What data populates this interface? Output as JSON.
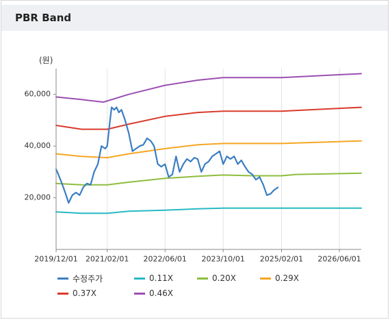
{
  "panel": {
    "title": "PBR Band"
  },
  "chart_data": {
    "type": "line",
    "unit_label": "(원)",
    "x_domain": [
      "2019-12-01",
      "2026-12-01"
    ],
    "ylim": [
      0,
      70000
    ],
    "x_ticks": [
      {
        "date": "2019-12-01",
        "label": "2019/12/01"
      },
      {
        "date": "2021-02-01",
        "label": "2021/02/01"
      },
      {
        "date": "2022-06-01",
        "label": "2022/06/01"
      },
      {
        "date": "2023-10-01",
        "label": "2023/10/01"
      },
      {
        "date": "2025-02-01",
        "label": "2025/02/01"
      },
      {
        "date": "2026-06-01",
        "label": "2026/06/01"
      }
    ],
    "y_ticks": [
      {
        "value": 20000,
        "label": "20,000"
      },
      {
        "value": 40000,
        "label": "40,000"
      },
      {
        "value": 60000,
        "label": "60,000"
      }
    ],
    "grid": "vertical",
    "legend_position": "bottom",
    "series": [
      {
        "name": "수정주가",
        "color": "#3a7ec2",
        "width": 2.2,
        "points": [
          [
            "2019-12-01",
            31000
          ],
          [
            "2019-12-20",
            29000
          ],
          [
            "2020-01-15",
            26000
          ],
          [
            "2020-02-15",
            22000
          ],
          [
            "2020-03-15",
            18000
          ],
          [
            "2020-04-15",
            21000
          ],
          [
            "2020-05-15",
            22000
          ],
          [
            "2020-06-15",
            21000
          ],
          [
            "2020-07-15",
            24000
          ],
          [
            "2020-08-15",
            25500
          ],
          [
            "2020-09-15",
            25000
          ],
          [
            "2020-10-15",
            30000
          ],
          [
            "2020-11-15",
            33000
          ],
          [
            "2020-12-15",
            40000
          ],
          [
            "2021-01-15",
            39000
          ],
          [
            "2021-02-01",
            40000
          ],
          [
            "2021-02-20",
            48000
          ],
          [
            "2021-03-10",
            55000
          ],
          [
            "2021-04-01",
            54000
          ],
          [
            "2021-04-20",
            55000
          ],
          [
            "2021-05-10",
            53000
          ],
          [
            "2021-06-01",
            54000
          ],
          [
            "2021-07-01",
            50000
          ],
          [
            "2021-08-01",
            45000
          ],
          [
            "2021-09-01",
            38000
          ],
          [
            "2021-10-01",
            39000
          ],
          [
            "2021-11-01",
            40000
          ],
          [
            "2021-12-01",
            40500
          ],
          [
            "2022-01-01",
            43000
          ],
          [
            "2022-02-01",
            42000
          ],
          [
            "2022-03-01",
            40000
          ],
          [
            "2022-04-01",
            33000
          ],
          [
            "2022-05-01",
            32000
          ],
          [
            "2022-06-01",
            33000
          ],
          [
            "2022-07-01",
            28000
          ],
          [
            "2022-08-01",
            29000
          ],
          [
            "2022-09-01",
            36000
          ],
          [
            "2022-10-01",
            30000
          ],
          [
            "2022-11-01",
            33000
          ],
          [
            "2022-12-01",
            35000
          ],
          [
            "2023-01-01",
            34000
          ],
          [
            "2023-02-01",
            35500
          ],
          [
            "2023-03-01",
            35000
          ],
          [
            "2023-04-01",
            30000
          ],
          [
            "2023-05-01",
            33000
          ],
          [
            "2023-06-01",
            34000
          ],
          [
            "2023-07-01",
            36000
          ],
          [
            "2023-08-01",
            37000
          ],
          [
            "2023-09-01",
            38000
          ],
          [
            "2023-10-01",
            33000
          ],
          [
            "2023-11-01",
            36000
          ],
          [
            "2023-12-01",
            35000
          ],
          [
            "2024-01-01",
            36000
          ],
          [
            "2024-02-01",
            33000
          ],
          [
            "2024-03-01",
            34500
          ],
          [
            "2024-04-01",
            32000
          ],
          [
            "2024-05-01",
            30000
          ],
          [
            "2024-06-01",
            29000
          ],
          [
            "2024-07-01",
            27000
          ],
          [
            "2024-08-01",
            28000
          ],
          [
            "2024-09-01",
            25000
          ],
          [
            "2024-10-01",
            21000
          ],
          [
            "2024-11-01",
            21500
          ],
          [
            "2024-12-01",
            23000
          ],
          [
            "2025-01-01",
            24000
          ]
        ]
      },
      {
        "name": "0.11X",
        "color": "#26b9c5",
        "width": 2,
        "points": [
          [
            "2019-12-01",
            14500
          ],
          [
            "2020-07-01",
            14000
          ],
          [
            "2021-02-01",
            14000
          ],
          [
            "2021-08-01",
            14800
          ],
          [
            "2022-06-01",
            15200
          ],
          [
            "2023-03-01",
            15700
          ],
          [
            "2023-10-01",
            16000
          ],
          [
            "2025-02-01",
            16000
          ],
          [
            "2026-12-01",
            16000
          ]
        ]
      },
      {
        "name": "0.20X",
        "color": "#8dbd3e",
        "width": 2,
        "points": [
          [
            "2019-12-01",
            25500
          ],
          [
            "2020-07-01",
            25000
          ],
          [
            "2021-02-01",
            25000
          ],
          [
            "2021-08-01",
            26000
          ],
          [
            "2022-06-01",
            27500
          ],
          [
            "2023-03-01",
            28300
          ],
          [
            "2023-10-01",
            28800
          ],
          [
            "2024-06-01",
            28500
          ],
          [
            "2025-02-01",
            28500
          ],
          [
            "2025-06-01",
            29000
          ],
          [
            "2026-12-01",
            29500
          ]
        ]
      },
      {
        "name": "0.29X",
        "color": "#f5a623",
        "width": 2,
        "points": [
          [
            "2019-12-01",
            37000
          ],
          [
            "2020-07-01",
            36000
          ],
          [
            "2021-02-01",
            35500
          ],
          [
            "2021-08-01",
            37000
          ],
          [
            "2022-06-01",
            39000
          ],
          [
            "2023-03-01",
            40500
          ],
          [
            "2023-10-01",
            41000
          ],
          [
            "2025-02-01",
            41000
          ],
          [
            "2026-12-01",
            42000
          ]
        ]
      },
      {
        "name": "0.37X",
        "color": "#d93a2b",
        "width": 2,
        "points": [
          [
            "2019-12-01",
            48000
          ],
          [
            "2020-07-01",
            46500
          ],
          [
            "2021-02-01",
            46500
          ],
          [
            "2021-08-01",
            48500
          ],
          [
            "2022-06-01",
            51500
          ],
          [
            "2023-03-01",
            53000
          ],
          [
            "2023-10-01",
            53500
          ],
          [
            "2025-02-01",
            53500
          ],
          [
            "2026-12-01",
            55000
          ]
        ]
      },
      {
        "name": "0.46X",
        "color": "#9b4fb2",
        "width": 2,
        "points": [
          [
            "2019-12-01",
            59000
          ],
          [
            "2020-07-01",
            58000
          ],
          [
            "2021-01-01",
            57000
          ],
          [
            "2021-08-01",
            60000
          ],
          [
            "2022-06-01",
            63500
          ],
          [
            "2023-03-01",
            65500
          ],
          [
            "2023-10-01",
            66500
          ],
          [
            "2025-02-01",
            66500
          ],
          [
            "2026-12-01",
            68000
          ]
        ]
      }
    ]
  }
}
